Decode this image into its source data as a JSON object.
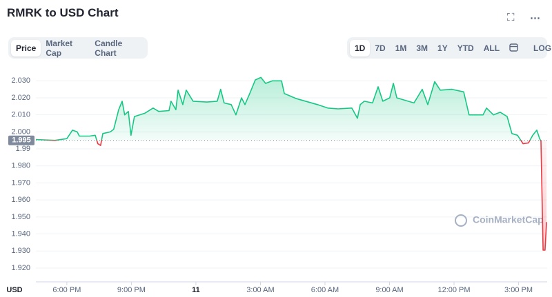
{
  "ui": {
    "title": "RMRK to USD Chart",
    "tabs": [
      "Price",
      "Market Cap",
      "Candle Chart"
    ],
    "ranges": [
      "1D",
      "7D",
      "1M",
      "3M",
      "1Y",
      "YTD",
      "ALL"
    ],
    "log_button": "LOG"
  },
  "chart_data": {
    "type": "line",
    "y_label": "USD",
    "watermark": "CoinMarketCap",
    "reference": 1.995,
    "up_color": "#16c784",
    "down_color": "#ea3943",
    "grid": true,
    "xlim": [
      16.56,
      40.33
    ],
    "ylim": [
      1.9135,
      2.0382
    ],
    "xticks": [
      {
        "value": 18,
        "label": "6:00 PM"
      },
      {
        "value": 21,
        "label": "9:00 PM"
      },
      {
        "value": 24,
        "label": "11"
      },
      {
        "value": 27,
        "label": "3:00 AM"
      },
      {
        "value": 30,
        "label": "6:00 AM"
      },
      {
        "value": 33,
        "label": "9:00 AM"
      },
      {
        "value": 36,
        "label": "12:00 PM"
      },
      {
        "value": 39,
        "label": "3:00 PM"
      }
    ],
    "yticks": [
      {
        "value": 2.03,
        "label": "2.030"
      },
      {
        "value": 2.02,
        "label": "2.020"
      },
      {
        "value": 2.01,
        "label": "2.010"
      },
      {
        "value": 2.0,
        "label": "2.000"
      },
      1.99,
      {
        "value": 1.98,
        "label": "1.980"
      },
      {
        "value": 1.97,
        "label": "1.970"
      },
      {
        "value": 1.96,
        "label": "1.960"
      },
      {
        "value": 1.95,
        "label": "1.950"
      },
      {
        "value": 1.94,
        "label": "1.940"
      },
      {
        "value": 1.93,
        "label": "1.930"
      },
      {
        "value": 1.92,
        "label": "1.920"
      }
    ],
    "series": [
      {
        "name": "Price",
        "x": [
          16.56,
          17.45,
          18.0,
          18.26,
          18.48,
          18.58,
          19.06,
          19.32,
          19.44,
          19.57,
          19.67,
          20.02,
          20.18,
          20.41,
          20.57,
          20.69,
          20.86,
          20.98,
          21.14,
          21.63,
          22.01,
          22.27,
          22.75,
          22.84,
          23.07,
          23.17,
          23.39,
          23.55,
          23.87,
          24.51,
          24.99,
          25.15,
          25.31,
          25.64,
          25.86,
          26.12,
          26.28,
          26.5,
          26.76,
          27.02,
          27.24,
          27.56,
          27.98,
          28.11,
          28.68,
          29.65,
          30.13,
          30.61,
          31.25,
          31.51,
          31.64,
          31.83,
          32.21,
          32.47,
          32.69,
          33.01,
          33.18,
          33.34,
          34.14,
          34.52,
          34.78,
          35.1,
          35.36,
          35.9,
          36.45,
          36.7,
          37.35,
          37.51,
          37.83,
          38.15,
          38.47,
          38.69,
          38.95,
          39.21,
          39.46,
          39.66,
          39.85,
          39.98,
          40.04,
          40.14,
          40.23,
          40.3
        ],
        "values": [
          1.9955,
          1.995,
          1.996,
          2.001,
          2.0,
          1.9975,
          1.9975,
          1.998,
          1.993,
          1.992,
          1.999,
          2.0,
          2.0015,
          2.013,
          2.018,
          2.01,
          2.012,
          1.998,
          2.009,
          2.011,
          2.014,
          2.012,
          2.0125,
          2.018,
          2.013,
          2.0245,
          2.016,
          2.0245,
          2.018,
          2.0175,
          2.018,
          2.025,
          2.017,
          2.016,
          2.01,
          2.02,
          2.016,
          2.0225,
          2.0305,
          2.032,
          2.0285,
          2.03,
          2.03,
          2.0225,
          2.0195,
          2.016,
          2.014,
          2.0135,
          2.014,
          2.008,
          2.016,
          2.018,
          2.017,
          2.0265,
          2.018,
          2.02,
          2.0285,
          2.02,
          2.017,
          2.025,
          2.016,
          2.0295,
          2.0245,
          2.025,
          2.0235,
          2.01,
          2.01,
          2.014,
          2.01,
          2.0115,
          2.009,
          1.999,
          1.998,
          1.993,
          1.9935,
          1.998,
          2.001,
          1.996,
          1.9945,
          1.9305,
          1.9305,
          1.947
        ]
      }
    ]
  }
}
